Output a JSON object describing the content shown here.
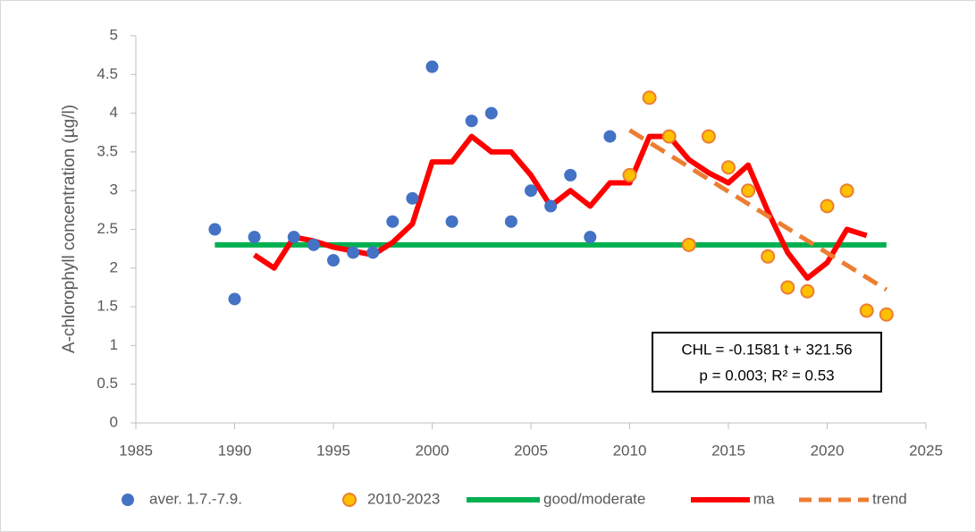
{
  "chart_data": {
    "type": "scatter",
    "ylabel": "A-chlorophyll concentration (µg/l)",
    "xlim": [
      1985,
      2025
    ],
    "xticks": [
      1985,
      1990,
      1995,
      2000,
      2005,
      2010,
      2015,
      2020,
      2025
    ],
    "ylim": [
      0,
      5
    ],
    "yticks": [
      0,
      0.5,
      1,
      1.5,
      2,
      2.5,
      3,
      3.5,
      4,
      4.5,
      5
    ],
    "grid": false,
    "legend": "bottom",
    "annotation": [
      "CHL = -0.1581 t + 321.56",
      "p = 0.003; R² = 0.53"
    ],
    "series": [
      {
        "name": "aver. 1.7.-7.9.",
        "type": "scatter",
        "color": "#4472c4",
        "x": [
          1989,
          1990,
          1991,
          1993,
          1994,
          1995,
          1996,
          1997,
          1998,
          1999,
          2000,
          2001,
          2002,
          2003,
          2004,
          2005,
          2006,
          2007,
          2008,
          2009
        ],
        "values": [
          2.5,
          1.6,
          2.4,
          2.4,
          2.3,
          2.1,
          2.2,
          2.2,
          2.6,
          2.9,
          4.6,
          2.6,
          3.9,
          4.0,
          2.6,
          3.0,
          2.8,
          3.2,
          2.4,
          3.7
        ]
      },
      {
        "name": "2010-2023",
        "type": "scatter",
        "color": "#ffc000",
        "edge": "#ed7d31",
        "x": [
          2010,
          2011,
          2012,
          2013,
          2014,
          2015,
          2016,
          2017,
          2018,
          2019,
          2020,
          2021,
          2022,
          2023
        ],
        "values": [
          3.2,
          4.2,
          3.7,
          2.3,
          3.7,
          3.3,
          3.0,
          2.15,
          1.75,
          1.7,
          2.8,
          3.0,
          1.45,
          1.4
        ]
      },
      {
        "name": "good/moderate",
        "type": "line",
        "color": "#00b050",
        "x": [
          1989,
          2023
        ],
        "values": [
          2.3,
          2.3
        ]
      },
      {
        "name": "ma",
        "type": "line",
        "color": "#ff0000",
        "x": [
          1991,
          1992,
          1993,
          1994,
          1995,
          1996,
          1997,
          1998,
          1999,
          2000,
          2001,
          2002,
          2003,
          2004,
          2005,
          2006,
          2007,
          2008,
          2009,
          2010,
          2011,
          2012,
          2013,
          2014,
          2015,
          2016,
          2017,
          2018,
          2019,
          2020,
          2021,
          2022
        ],
        "values": [
          2.17,
          2.0,
          2.4,
          2.35,
          2.27,
          2.22,
          2.17,
          2.33,
          2.57,
          3.37,
          3.37,
          3.7,
          3.5,
          3.5,
          3.2,
          2.8,
          3.0,
          2.8,
          3.1,
          3.1,
          3.7,
          3.7,
          3.4,
          3.23,
          3.1,
          3.33,
          2.73,
          2.2,
          1.87,
          2.07,
          2.5,
          2.42
        ]
      },
      {
        "name": "trend",
        "type": "line",
        "dash": true,
        "color": "#ed7d31",
        "x": [
          2010,
          2023
        ],
        "values": [
          3.78,
          1.72
        ]
      }
    ]
  }
}
